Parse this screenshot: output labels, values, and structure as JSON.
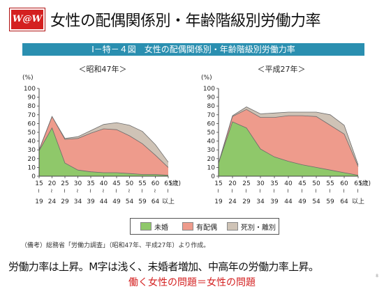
{
  "logo_text": "W@W",
  "title": "女性の配偶関係別・年齢階級別労働力率",
  "banner": "Ⅰ－特－４図　女性の配偶関係別・年齢階級別労働力率",
  "colors": {
    "unmarried": "#8fc86a",
    "married": "#ee9b8c",
    "widowed": "#cfc3b6",
    "banner": "#2a8fb0",
    "accent": "#d42020"
  },
  "chart_data": [
    {
      "type": "area",
      "title": "＜昭和47年＞",
      "unit": "(%)",
      "x_label": "(歳)",
      "y_ticks": [
        "0",
        "10",
        "20",
        "30",
        "40",
        "50",
        "60",
        "70",
        "80",
        "90",
        "100"
      ],
      "ylim": [
        0,
        100
      ],
      "categories": [
        {
          "top": "15",
          "bottom": "19"
        },
        {
          "top": "20",
          "bottom": "24"
        },
        {
          "top": "25",
          "bottom": "29"
        },
        {
          "top": "30",
          "bottom": "34"
        },
        {
          "top": "35",
          "bottom": "39"
        },
        {
          "top": "40",
          "bottom": "44"
        },
        {
          "top": "45",
          "bottom": "49"
        },
        {
          "top": "50",
          "bottom": "54"
        },
        {
          "top": "55",
          "bottom": "59"
        },
        {
          "top": "60",
          "bottom": "64"
        },
        {
          "top": "65",
          "bottom": "以上"
        }
      ],
      "stacked": true,
      "series": [
        {
          "name": "未婚",
          "values": [
            29,
            55,
            15,
            7,
            5,
            4,
            4,
            3,
            2,
            2,
            1
          ]
        },
        {
          "name": "有配偶",
          "values": [
            1,
            13,
            27,
            36,
            44,
            50,
            49,
            43,
            35,
            22,
            9
          ]
        },
        {
          "name": "死別・離別",
          "values": [
            0,
            0,
            1,
            2,
            3,
            5,
            8,
            12,
            14,
            12,
            6
          ]
        }
      ]
    },
    {
      "type": "area",
      "title": "＜平成27年＞",
      "unit": "(%)",
      "x_label": "(歳)",
      "y_ticks": [
        "0",
        "10",
        "20",
        "30",
        "40",
        "50",
        "60",
        "70",
        "80",
        "90",
        "100"
      ],
      "ylim": [
        0,
        100
      ],
      "categories": [
        {
          "top": "15",
          "bottom": "19"
        },
        {
          "top": "20",
          "bottom": "24"
        },
        {
          "top": "25",
          "bottom": "29"
        },
        {
          "top": "30",
          "bottom": "34"
        },
        {
          "top": "35",
          "bottom": "39"
        },
        {
          "top": "40",
          "bottom": "44"
        },
        {
          "top": "45",
          "bottom": "49"
        },
        {
          "top": "50",
          "bottom": "54"
        },
        {
          "top": "55",
          "bottom": "59"
        },
        {
          "top": "60",
          "bottom": "64"
        },
        {
          "top": "65",
          "bottom": "以上"
        }
      ],
      "stacked": true,
      "series": [
        {
          "name": "未婚",
          "values": [
            15,
            62,
            55,
            31,
            22,
            17,
            13,
            10,
            7,
            4,
            1
          ]
        },
        {
          "name": "有配偶",
          "values": [
            0,
            6,
            21,
            36,
            45,
            52,
            56,
            58,
            51,
            44,
            10
          ]
        },
        {
          "name": "死別・離別",
          "values": [
            0,
            1,
            3,
            4,
            5,
            4,
            4,
            5,
            12,
            10,
            2
          ]
        }
      ]
    }
  ],
  "legend": {
    "items": [
      "未婚",
      "有配偶",
      "死別・離別"
    ]
  },
  "note": "（備考）総務省「労働力調査」（昭和47年、平成27年）より作成。",
  "summary": "労働力率は上昇。M字は浅く、未婚者増加、中高年の労働力率上昇。",
  "tagline": "働く女性の問題＝女性の問題",
  "page_number": "8"
}
